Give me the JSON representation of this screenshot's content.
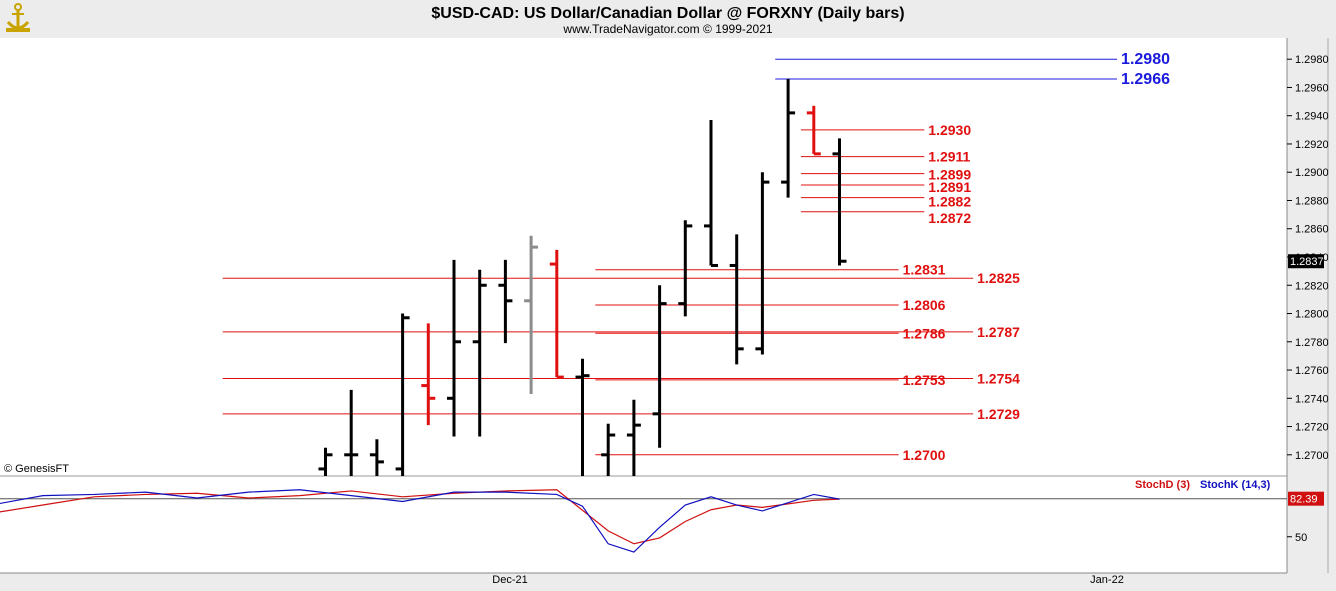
{
  "header": {
    "title": "$USD-CAD:  US Dollar/Canadian Dollar @ FORXNY  (Daily bars)",
    "subtitle": "www.TradeNavigator.com © 1999-2021",
    "copyright": "© GenesisFT",
    "logo_icon": "anchor-icon"
  },
  "colors": {
    "bar_black": "#000000",
    "bar_red": "#e01010",
    "bar_gray": "#8c8c8c",
    "level_red": "#e01010",
    "level_blue": "#1a1adc",
    "stoch_d": "#d01010",
    "stoch_k": "#1010c0",
    "background": "#ffffff",
    "frame": "#ececec"
  },
  "chart_data": [
    {
      "type": "ohlc",
      "ylim": [
        1.2685,
        1.2995
      ],
      "yticks": [
        "1.2700",
        "1.2720",
        "1.2740",
        "1.2760",
        "1.2780",
        "1.2800",
        "1.2820",
        "1.2840",
        "1.2860",
        "1.2880",
        "1.2900",
        "1.2920",
        "1.2940",
        "1.2960",
        "1.2980"
      ],
      "xtick_labels": [
        "Dec-21",
        "Jan-22"
      ],
      "last_price": "1.2837",
      "bars": [
        {
          "o": 1.269,
          "h": 1.2705,
          "l": 1.2685,
          "c": 1.27,
          "color": "black"
        },
        {
          "o": 1.27,
          "h": 1.2746,
          "l": 1.2685,
          "c": 1.27,
          "color": "black"
        },
        {
          "o": 1.27,
          "h": 1.2711,
          "l": 1.2685,
          "c": 1.2695,
          "color": "black"
        },
        {
          "o": 1.269,
          "h": 1.28,
          "l": 1.2685,
          "c": 1.2797,
          "color": "black"
        },
        {
          "o": 1.2749,
          "h": 1.2793,
          "l": 1.2721,
          "c": 1.274,
          "color": "red"
        },
        {
          "o": 1.274,
          "h": 1.2838,
          "l": 1.2713,
          "c": 1.278,
          "color": "black"
        },
        {
          "o": 1.278,
          "h": 1.2831,
          "l": 1.2713,
          "c": 1.282,
          "color": "black"
        },
        {
          "o": 1.282,
          "h": 1.2838,
          "l": 1.2779,
          "c": 1.2809,
          "color": "black"
        },
        {
          "o": 1.2809,
          "h": 1.2855,
          "l": 1.2743,
          "c": 1.2847,
          "color": "gray"
        },
        {
          "o": 1.2835,
          "h": 1.2845,
          "l": 1.2755,
          "c": 1.2755,
          "color": "red"
        },
        {
          "o": 1.2755,
          "h": 1.2768,
          "l": 1.2685,
          "c": 1.2756,
          "color": "black"
        },
        {
          "o": 1.27,
          "h": 1.2722,
          "l": 1.2685,
          "c": 1.2714,
          "color": "black"
        },
        {
          "o": 1.2714,
          "h": 1.2739,
          "l": 1.2685,
          "c": 1.2721,
          "color": "black"
        },
        {
          "o": 1.2729,
          "h": 1.282,
          "l": 1.2705,
          "c": 1.2807,
          "color": "black"
        },
        {
          "o": 1.2807,
          "h": 1.2866,
          "l": 1.2798,
          "c": 1.2862,
          "color": "black"
        },
        {
          "o": 1.2862,
          "h": 1.2937,
          "l": 1.2834,
          "c": 1.2834,
          "color": "black"
        },
        {
          "o": 1.2834,
          "h": 1.2856,
          "l": 1.2764,
          "c": 1.2775,
          "color": "black"
        },
        {
          "o": 1.2775,
          "h": 1.29,
          "l": 1.2771,
          "c": 1.2893,
          "color": "black"
        },
        {
          "o": 1.2893,
          "h": 1.2966,
          "l": 1.2882,
          "c": 1.2942,
          "color": "black"
        },
        {
          "o": 1.2942,
          "h": 1.2947,
          "l": 1.2913,
          "c": 1.2913,
          "color": "red"
        },
        {
          "o": 1.2913,
          "h": 1.2924,
          "l": 1.2834,
          "c": 1.2837,
          "color": "black"
        }
      ],
      "levels": [
        {
          "value": 1.298,
          "label": "1.2980",
          "color": "blue",
          "start_bar": 17.5,
          "end_bar": 30.8,
          "label_side": "right"
        },
        {
          "value": 1.2966,
          "label": "1.2966",
          "color": "blue",
          "start_bar": 17.5,
          "end_bar": 30.8,
          "label_side": "right"
        },
        {
          "value": 1.293,
          "label": "1.2930",
          "color": "red",
          "start_bar": 18.5,
          "end_bar": 23.3,
          "label_side": "right"
        },
        {
          "value": 1.2911,
          "label": "1.2911",
          "color": "red",
          "start_bar": 18.5,
          "end_bar": 23.3,
          "label_side": "right"
        },
        {
          "value": 1.2899,
          "label": "1.2899",
          "color": "red",
          "start_bar": 18.5,
          "end_bar": 23.3,
          "label_side": "right"
        },
        {
          "value": 1.2891,
          "label": "1.2891",
          "color": "red",
          "start_bar": 18.5,
          "end_bar": 23.3,
          "label_side": "right"
        },
        {
          "value": 1.2882,
          "label": "1.2882",
          "color": "red",
          "start_bar": 18.5,
          "end_bar": 23.3,
          "label_side": "right"
        },
        {
          "value": 1.2872,
          "label": "1.2872",
          "color": "red",
          "start_bar": 18.5,
          "end_bar": 23.3,
          "label_side": "right"
        },
        {
          "value": 1.2831,
          "label": "1.2831",
          "color": "red",
          "start_bar": 10.5,
          "end_bar": 22.3,
          "label_side": "right"
        },
        {
          "value": 1.2825,
          "label": "1.2825",
          "color": "red",
          "start_bar": -4.0,
          "end_bar": 25.2,
          "label_side": "right"
        },
        {
          "value": 1.2806,
          "label": "1.2806",
          "color": "red",
          "start_bar": 10.5,
          "end_bar": 22.3,
          "label_side": "right"
        },
        {
          "value": 1.2787,
          "label": "1.2787",
          "color": "red",
          "start_bar": -4.0,
          "end_bar": 25.2,
          "label_side": "right"
        },
        {
          "value": 1.2786,
          "label": "1.2786",
          "color": "red",
          "start_bar": 10.5,
          "end_bar": 22.3,
          "label_side": "right"
        },
        {
          "value": 1.2754,
          "label": "1.2754",
          "color": "red",
          "start_bar": -4.0,
          "end_bar": 25.2,
          "label_side": "right"
        },
        {
          "value": 1.2753,
          "label": "1.2753",
          "color": "red",
          "start_bar": 10.5,
          "end_bar": 22.3,
          "label_side": "right"
        },
        {
          "value": 1.2729,
          "label": "1.2729",
          "color": "red",
          "start_bar": -4.0,
          "end_bar": 25.2,
          "label_side": "right"
        },
        {
          "value": 1.27,
          "label": "1.2700",
          "color": "red",
          "start_bar": 10.5,
          "end_bar": 22.3,
          "label_side": "right"
        }
      ]
    },
    {
      "type": "line",
      "ylim": [
        20,
        100
      ],
      "yticks": [
        "50"
      ],
      "last_value": "82.39",
      "series": [
        {
          "name": "StochD (3)",
          "color": "red",
          "x": [
            -13.0,
            -11.0,
            -9.0,
            -7.0,
            -5.0,
            -3.0,
            -1.0,
            1.0,
            3.0,
            5.0,
            7.0,
            9.0,
            11.0,
            12.0,
            13.0,
            14.0,
            15.0,
            16.0,
            17.0,
            18.0,
            19.0,
            20.0
          ],
          "values": [
            70,
            77,
            84,
            86,
            87,
            83,
            85,
            89,
            84,
            87,
            89,
            90,
            55,
            44,
            49,
            63,
            73,
            77,
            75,
            78,
            81,
            82
          ]
        },
        {
          "name": "StochK (14,3)",
          "color": "blue",
          "x": [
            -13.0,
            -11.0,
            -9.0,
            -7.0,
            -5.0,
            -3.0,
            -1.0,
            1.0,
            3.0,
            5.0,
            7.0,
            9.0,
            10.0,
            11.0,
            12.0,
            13.0,
            14.0,
            15.0,
            16.0,
            17.0,
            18.0,
            19.0,
            20.0
          ],
          "values": [
            77,
            85,
            86,
            88,
            83,
            88,
            90,
            85,
            80,
            88,
            88,
            86,
            76,
            44,
            37,
            58,
            77,
            84,
            77,
            72,
            79,
            86,
            82
          ]
        }
      ]
    }
  ]
}
